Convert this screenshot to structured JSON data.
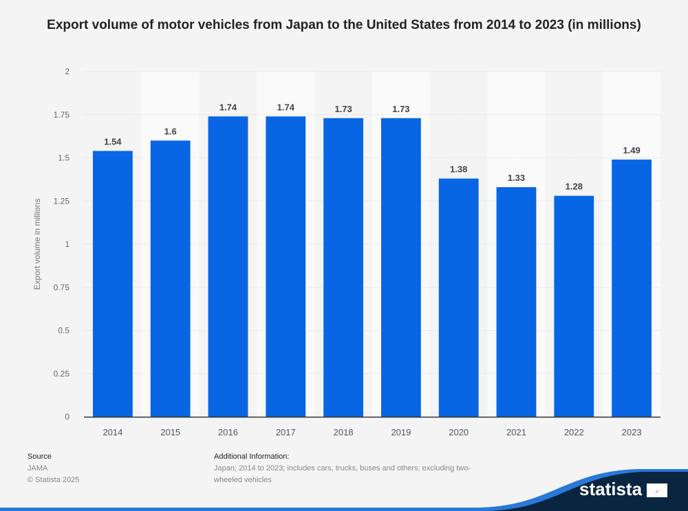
{
  "chart_data": {
    "type": "bar",
    "title": "Export volume of motor vehicles from Japan to the United States from 2014 to 2023 (in millions)",
    "xlabel": "",
    "ylabel": "Export volume in millions",
    "categories": [
      "2014",
      "2015",
      "2016",
      "2017",
      "2018",
      "2019",
      "2020",
      "2021",
      "2022",
      "2023"
    ],
    "values": [
      1.54,
      1.6,
      1.74,
      1.74,
      1.73,
      1.73,
      1.38,
      1.33,
      1.28,
      1.49
    ],
    "value_labels": [
      "1.54",
      "1.6",
      "1.74",
      "1.74",
      "1.73",
      "1.73",
      "1.38",
      "1.33",
      "1.28",
      "1.49"
    ],
    "ylim": [
      0,
      2
    ],
    "yticks": [
      0,
      0.25,
      0.5,
      0.75,
      1,
      1.25,
      1.5,
      1.75,
      2
    ],
    "ytick_labels": [
      "0",
      "0.25",
      "0.5",
      "0.75",
      "1",
      "1.25",
      "1.5",
      "1.75",
      "2"
    ],
    "grid": true,
    "legend": "none",
    "bar_color": "#0866e4"
  },
  "footer": {
    "source_heading": "Source",
    "source_name": "JAMA",
    "copyright": "© Statista 2025",
    "info_heading": "Additional Information:",
    "info_text": "Japan; 2014 to 2023; includes cars, trucks, buses and others; excluding two-wheeled vehicles"
  },
  "brand": {
    "logo_text": "statista",
    "logo_icon": "statista-logo-icon",
    "dark_color": "#0a2540",
    "accent_color": "#2a78d8"
  }
}
